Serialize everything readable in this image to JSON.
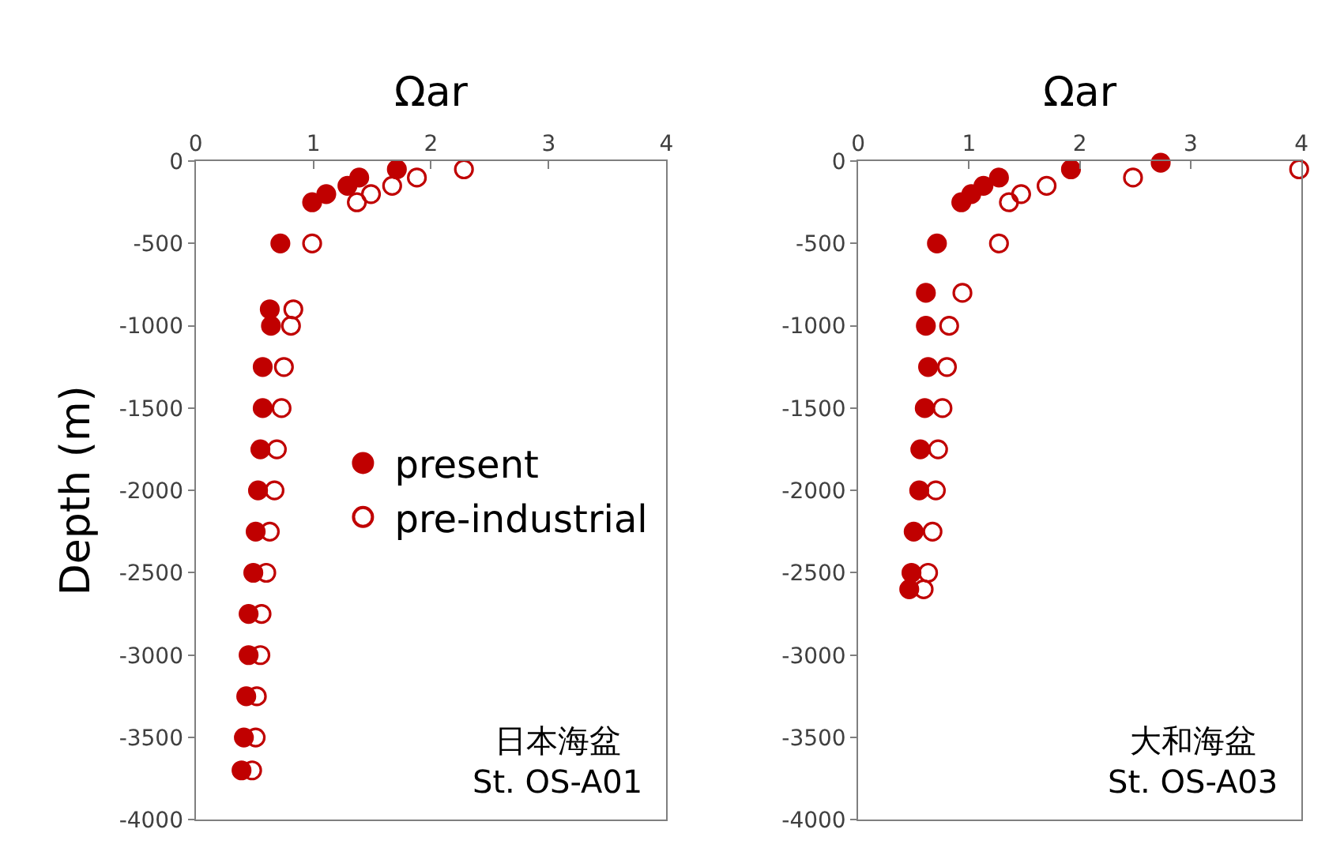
{
  "chart_data": [
    {
      "type": "scatter",
      "xlabel": "Ωar",
      "ylabel": "Depth (m)",
      "xlim": [
        0,
        4
      ],
      "xticks": [
        0,
        1,
        2,
        3,
        4
      ],
      "ylim": [
        -4000,
        0
      ],
      "yticks": [
        -4000,
        -3500,
        -3000,
        -2500,
        -2000,
        -1500,
        -1000,
        -500,
        0
      ],
      "legend": "right",
      "annotations": [
        "日本海盆\nSt. OS-A01"
      ],
      "series": [
        {
          "name": "present",
          "color": "#c00000",
          "marker": "circle",
          "x": [
            1.71,
            1.39,
            1.29,
            1.11,
            0.99,
            0.72,
            0.63,
            0.64,
            0.57,
            0.57,
            0.55,
            0.53,
            0.51,
            0.49,
            0.45,
            0.45,
            0.43,
            0.41,
            0.39
          ],
          "values": [
            -50,
            -100,
            -150,
            -200,
            -250,
            -500,
            -900,
            -1000,
            -1250,
            -1500,
            -1750,
            -2000,
            -2250,
            -2500,
            -2750,
            -3000,
            -3250,
            -3500,
            -3700
          ]
        },
        {
          "name": "pre-industrial",
          "color": "#c00000",
          "marker": "circle-open",
          "x": [
            2.28,
            1.88,
            1.67,
            1.49,
            1.37,
            0.99,
            0.83,
            0.81,
            0.75,
            0.73,
            0.69,
            0.67,
            0.63,
            0.6,
            0.56,
            0.55,
            0.52,
            0.51,
            0.48
          ],
          "values": [
            -50,
            -100,
            -150,
            -200,
            -250,
            -500,
            -900,
            -1000,
            -1250,
            -1500,
            -1750,
            -2000,
            -2250,
            -2500,
            -2750,
            -3000,
            -3250,
            -3500,
            -3700
          ]
        }
      ]
    },
    {
      "type": "scatter",
      "xlabel": "Ωar",
      "xlim": [
        0,
        4
      ],
      "xticks": [
        0,
        1,
        2,
        3,
        4
      ],
      "ylim": [
        -4000,
        0
      ],
      "yticks": [
        -4000,
        -3500,
        -3000,
        -2500,
        -2000,
        -1500,
        -1000,
        -500,
        0
      ],
      "annotations": [
        "大和海盆\nSt. OS-A03"
      ],
      "series": [
        {
          "color": "#c00000",
          "marker": "circle",
          "x": [
            2.73,
            1.92,
            1.27,
            1.13,
            1.02,
            0.93,
            0.71,
            0.61,
            0.61,
            0.63,
            0.6,
            0.56,
            0.55,
            0.5,
            0.48,
            0.46
          ],
          "values": [
            -10,
            -50,
            -100,
            -150,
            -200,
            -250,
            -500,
            -800,
            -1000,
            -1250,
            -1500,
            -1750,
            -2000,
            -2250,
            -2500,
            -2600
          ]
        },
        {
          "color": "#c00000",
          "marker": "circle-open",
          "x": [
            3.98,
            2.48,
            1.7,
            1.47,
            1.36,
            1.27,
            0.94,
            0.82,
            0.8,
            0.76,
            0.72,
            0.7,
            0.67,
            0.63,
            0.59
          ],
          "values": [
            -50,
            -100,
            -150,
            -200,
            -250,
            -500,
            -800,
            -1000,
            -1250,
            -1500,
            -1750,
            -2000,
            -2250,
            -2500,
            -2600
          ]
        }
      ]
    }
  ]
}
